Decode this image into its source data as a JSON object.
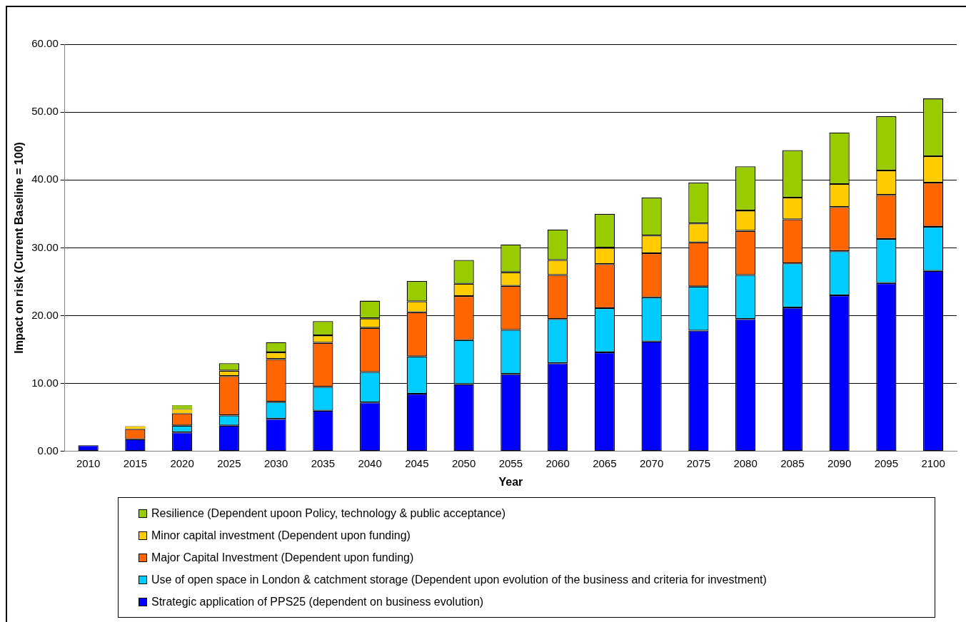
{
  "chart_data": {
    "type": "bar",
    "stacked": true,
    "xlabel": "Year",
    "ylabel": "Impact on risk (Current Baseline = 100)",
    "categories": [
      "2010",
      "2015",
      "2020",
      "2025",
      "2030",
      "2035",
      "2040",
      "2045",
      "2050",
      "2055",
      "2060",
      "2065",
      "2070",
      "2075",
      "2080",
      "2085",
      "2090",
      "2095",
      "2100"
    ],
    "series": [
      {
        "name": "Strategic application of PPS25 (dependent on business evolution)",
        "color": "#0000ff",
        "values": [
          0.9,
          1.8,
          2.8,
          3.8,
          4.8,
          6.0,
          7.2,
          8.5,
          9.9,
          11.4,
          13.0,
          14.6,
          16.2,
          17.8,
          19.5,
          21.2,
          23.0,
          24.8,
          26.6
        ]
      },
      {
        "name": "Use of open space in London & catchment storage (Dependent upon evolution of the business and criteria for investment)",
        "color": "#00ccff",
        "values": [
          null,
          null,
          1.0,
          1.5,
          2.5,
          3.5,
          4.5,
          5.5,
          6.5,
          6.5,
          6.5,
          6.5,
          6.5,
          6.5,
          6.5,
          6.5,
          6.5,
          6.5,
          6.5
        ]
      },
      {
        "name": "Major Capital Investment (Dependent upon funding)",
        "color": "#ff6600",
        "values": [
          null,
          1.5,
          1.8,
          5.8,
          6.3,
          6.5,
          6.5,
          6.5,
          6.5,
          6.5,
          6.5,
          6.5,
          6.5,
          6.5,
          6.5,
          6.5,
          6.5,
          6.5,
          6.5
        ]
      },
      {
        "name": "Minor capital investment (Dependent upon funding)",
        "color": "#ffcc00",
        "values": [
          null,
          0.4,
          0.6,
          0.8,
          1.0,
          1.1,
          1.4,
          1.6,
          1.8,
          2.0,
          2.2,
          2.4,
          2.6,
          2.8,
          3.0,
          3.2,
          3.4,
          3.6,
          3.9
        ]
      },
      {
        "name": "Resilience (Dependent upoon Policy, technology & public acceptance)",
        "color": "#99cc00",
        "values": [
          null,
          null,
          0.6,
          1.1,
          1.5,
          2.1,
          2.6,
          3.0,
          3.5,
          4.1,
          4.5,
          5.0,
          5.6,
          6.0,
          6.5,
          7.0,
          7.6,
          8.0,
          8.5
        ]
      }
    ],
    "ylim": [
      0,
      60
    ],
    "yticks": [
      {
        "value": 0,
        "label": "0.00"
      },
      {
        "value": 10,
        "label": "10.00"
      },
      {
        "value": 20,
        "label": "20.00"
      },
      {
        "value": 30,
        "label": "30.00"
      },
      {
        "value": 40,
        "label": "40.00"
      },
      {
        "value": 50,
        "label": "50.00"
      },
      {
        "value": 60,
        "label": "60.00"
      }
    ],
    "grid": "y",
    "legend": "bottom"
  }
}
